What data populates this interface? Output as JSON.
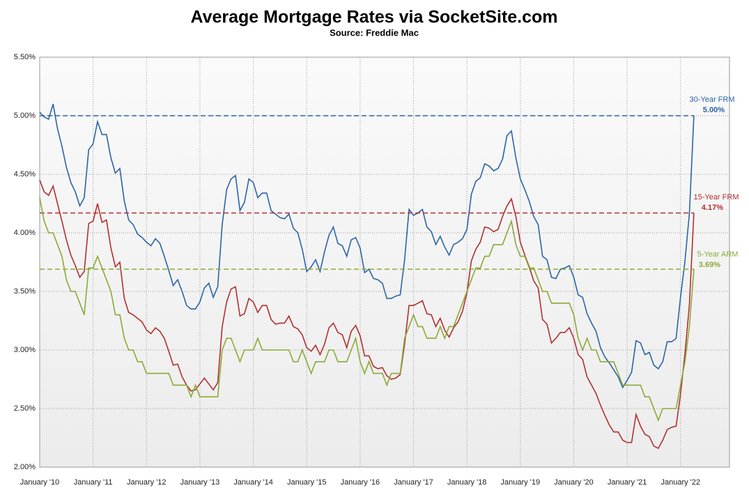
{
  "chart_data": {
    "type": "line",
    "title": "Average Mortgage Rates via SocketSite.com",
    "subtitle": "Source: Freddie Mac",
    "x": [
      "2010-01",
      "2010-02",
      "2010-03",
      "2010-04",
      "2010-05",
      "2010-06",
      "2010-07",
      "2010-08",
      "2010-09",
      "2010-10",
      "2010-11",
      "2010-12",
      "2011-01",
      "2011-02",
      "2011-03",
      "2011-04",
      "2011-05",
      "2011-06",
      "2011-07",
      "2011-08",
      "2011-09",
      "2011-10",
      "2011-11",
      "2011-12",
      "2012-01",
      "2012-02",
      "2012-03",
      "2012-04",
      "2012-05",
      "2012-06",
      "2012-07",
      "2012-08",
      "2012-09",
      "2012-10",
      "2012-11",
      "2012-12",
      "2013-01",
      "2013-02",
      "2013-03",
      "2013-04",
      "2013-05",
      "2013-06",
      "2013-07",
      "2013-08",
      "2013-09",
      "2013-10",
      "2013-11",
      "2013-12",
      "2014-01",
      "2014-02",
      "2014-03",
      "2014-04",
      "2014-05",
      "2014-06",
      "2014-07",
      "2014-08",
      "2014-09",
      "2014-10",
      "2014-11",
      "2014-12",
      "2015-01",
      "2015-02",
      "2015-03",
      "2015-04",
      "2015-05",
      "2015-06",
      "2015-07",
      "2015-08",
      "2015-09",
      "2015-10",
      "2015-11",
      "2015-12",
      "2016-01",
      "2016-02",
      "2016-03",
      "2016-04",
      "2016-05",
      "2016-06",
      "2016-07",
      "2016-08",
      "2016-09",
      "2016-10",
      "2016-11",
      "2016-12",
      "2017-01",
      "2017-02",
      "2017-03",
      "2017-04",
      "2017-05",
      "2017-06",
      "2017-07",
      "2017-08",
      "2017-09",
      "2017-10",
      "2017-11",
      "2017-12",
      "2018-01",
      "2018-02",
      "2018-03",
      "2018-04",
      "2018-05",
      "2018-06",
      "2018-07",
      "2018-08",
      "2018-09",
      "2018-10",
      "2018-11",
      "2018-12",
      "2019-01",
      "2019-02",
      "2019-03",
      "2019-04",
      "2019-05",
      "2019-06",
      "2019-07",
      "2019-08",
      "2019-09",
      "2019-10",
      "2019-11",
      "2019-12",
      "2020-01",
      "2020-02",
      "2020-03",
      "2020-04",
      "2020-05",
      "2020-06",
      "2020-07",
      "2020-08",
      "2020-09",
      "2020-10",
      "2020-11",
      "2020-12",
      "2021-01",
      "2021-02",
      "2021-03",
      "2021-04",
      "2021-05",
      "2021-06",
      "2021-07",
      "2021-08",
      "2021-09",
      "2021-10",
      "2021-11",
      "2021-12",
      "2022-01",
      "2022-02",
      "2022-03",
      "2022-04"
    ],
    "series": [
      {
        "name": "30-Year FRM",
        "color": "#2b63a8",
        "reference": {
          "value": 5.0,
          "label": "5.00%"
        },
        "values": [
          5.03,
          4.99,
          4.97,
          5.1,
          4.89,
          4.74,
          4.56,
          4.43,
          4.35,
          4.23,
          4.3,
          4.71,
          4.76,
          4.95,
          4.84,
          4.84,
          4.64,
          4.51,
          4.55,
          4.27,
          4.11,
          4.07,
          3.99,
          3.96,
          3.92,
          3.89,
          3.95,
          3.91,
          3.8,
          3.68,
          3.55,
          3.6,
          3.5,
          3.38,
          3.35,
          3.35,
          3.41,
          3.53,
          3.57,
          3.45,
          3.54,
          4.07,
          4.37,
          4.46,
          4.49,
          4.19,
          4.26,
          4.46,
          4.43,
          4.3,
          4.34,
          4.34,
          4.19,
          4.16,
          4.13,
          4.12,
          4.16,
          4.04,
          4.0,
          3.86,
          3.67,
          3.71,
          3.77,
          3.67,
          3.84,
          3.98,
          4.05,
          3.91,
          3.89,
          3.8,
          3.94,
          3.96,
          3.87,
          3.66,
          3.69,
          3.61,
          3.6,
          3.57,
          3.44,
          3.44,
          3.46,
          3.47,
          3.77,
          4.2,
          4.15,
          4.17,
          4.2,
          4.05,
          4.01,
          3.9,
          3.97,
          3.88,
          3.81,
          3.9,
          3.92,
          3.95,
          4.03,
          4.33,
          4.44,
          4.47,
          4.59,
          4.57,
          4.53,
          4.55,
          4.63,
          4.83,
          4.87,
          4.64,
          4.46,
          4.37,
          4.27,
          4.14,
          4.07,
          3.8,
          3.77,
          3.62,
          3.61,
          3.69,
          3.7,
          3.72,
          3.62,
          3.47,
          3.45,
          3.31,
          3.23,
          3.16,
          3.02,
          2.94,
          2.89,
          2.83,
          2.77,
          2.68,
          2.74,
          2.81,
          3.08,
          3.06,
          2.96,
          2.98,
          2.87,
          2.84,
          2.9,
          3.07,
          3.07,
          3.1,
          3.45,
          3.76,
          4.17,
          5.0
        ]
      },
      {
        "name": "15-Year FRM",
        "color": "#b22e2e",
        "reference": {
          "value": 4.17,
          "label": "4.17%"
        },
        "values": [
          4.45,
          4.35,
          4.32,
          4.4,
          4.25,
          4.1,
          3.94,
          3.81,
          3.72,
          3.62,
          3.67,
          4.08,
          4.1,
          4.25,
          4.09,
          4.11,
          3.87,
          3.71,
          3.75,
          3.44,
          3.32,
          3.3,
          3.27,
          3.24,
          3.17,
          3.14,
          3.19,
          3.16,
          3.1,
          2.99,
          2.87,
          2.88,
          2.77,
          2.7,
          2.65,
          2.66,
          2.71,
          2.76,
          2.71,
          2.66,
          2.72,
          3.2,
          3.41,
          3.52,
          3.54,
          3.29,
          3.31,
          3.44,
          3.41,
          3.32,
          3.38,
          3.38,
          3.26,
          3.22,
          3.23,
          3.23,
          3.29,
          3.2,
          3.18,
          3.13,
          3.02,
          2.99,
          3.04,
          2.96,
          3.05,
          3.19,
          3.23,
          3.15,
          3.13,
          3.02,
          3.16,
          3.21,
          3.12,
          2.95,
          2.95,
          2.86,
          2.84,
          2.85,
          2.78,
          2.75,
          2.76,
          2.79,
          3.05,
          3.38,
          3.38,
          3.4,
          3.42,
          3.31,
          3.3,
          3.2,
          3.27,
          3.17,
          3.11,
          3.19,
          3.24,
          3.33,
          3.49,
          3.76,
          3.86,
          3.92,
          4.05,
          4.04,
          4.01,
          4.03,
          4.14,
          4.23,
          4.29,
          4.14,
          3.92,
          3.81,
          3.71,
          3.59,
          3.53,
          3.26,
          3.22,
          3.06,
          3.1,
          3.15,
          3.15,
          3.19,
          3.1,
          2.96,
          2.92,
          2.77,
          2.7,
          2.63,
          2.53,
          2.44,
          2.36,
          2.3,
          2.3,
          2.23,
          2.21,
          2.21,
          2.45,
          2.35,
          2.28,
          2.26,
          2.18,
          2.16,
          2.23,
          2.32,
          2.34,
          2.35,
          2.62,
          2.97,
          3.39,
          4.17
        ]
      },
      {
        "name": "5-Year ARM",
        "color": "#8aaa34",
        "reference": {
          "value": 3.69,
          "label": "3.69%"
        },
        "values": [
          4.3,
          4.1,
          4.0,
          4.0,
          3.9,
          3.8,
          3.6,
          3.5,
          3.5,
          3.4,
          3.3,
          3.7,
          3.7,
          3.8,
          3.7,
          3.6,
          3.5,
          3.3,
          3.3,
          3.1,
          3.0,
          3.0,
          2.9,
          2.9,
          2.8,
          2.8,
          2.8,
          2.8,
          2.8,
          2.8,
          2.7,
          2.7,
          2.7,
          2.7,
          2.6,
          2.7,
          2.6,
          2.6,
          2.6,
          2.6,
          2.6,
          3.0,
          3.1,
          3.1,
          3.0,
          2.9,
          3.0,
          3.0,
          3.0,
          3.1,
          3.0,
          3.0,
          3.0,
          3.0,
          3.0,
          3.0,
          3.0,
          2.9,
          2.9,
          3.0,
          2.9,
          2.8,
          2.9,
          2.9,
          2.9,
          3.0,
          3.0,
          2.9,
          2.9,
          2.9,
          3.0,
          3.1,
          2.9,
          2.8,
          2.9,
          2.8,
          2.8,
          2.8,
          2.7,
          2.8,
          2.8,
          2.8,
          3.1,
          3.2,
          3.3,
          3.2,
          3.2,
          3.1,
          3.1,
          3.1,
          3.2,
          3.1,
          3.2,
          3.2,
          3.3,
          3.4,
          3.5,
          3.6,
          3.7,
          3.7,
          3.8,
          3.8,
          3.9,
          3.9,
          3.9,
          4.0,
          4.1,
          3.9,
          3.8,
          3.8,
          3.7,
          3.7,
          3.6,
          3.5,
          3.5,
          3.4,
          3.4,
          3.4,
          3.4,
          3.4,
          3.3,
          3.1,
          3.0,
          3.1,
          3.0,
          3.0,
          2.9,
          2.9,
          2.9,
          2.9,
          2.8,
          2.7,
          2.7,
          2.7,
          2.7,
          2.7,
          2.6,
          2.6,
          2.5,
          2.4,
          2.5,
          2.5,
          2.5,
          2.5,
          2.7,
          2.9,
          3.2,
          3.69
        ]
      }
    ],
    "xlim": [
      "2010-01",
      "2022-12"
    ],
    "xticks": [
      {
        "value": "2010-01",
        "label": "January '10"
      },
      {
        "value": "2011-01",
        "label": "January '11"
      },
      {
        "value": "2012-01",
        "label": "January '12"
      },
      {
        "value": "2013-01",
        "label": "January '13"
      },
      {
        "value": "2014-01",
        "label": "January '14"
      },
      {
        "value": "2015-01",
        "label": "January '15"
      },
      {
        "value": "2016-01",
        "label": "January '16"
      },
      {
        "value": "2017-01",
        "label": "January '17"
      },
      {
        "value": "2018-01",
        "label": "January '18"
      },
      {
        "value": "2019-01",
        "label": "January '19"
      },
      {
        "value": "2020-01",
        "label": "January '20"
      },
      {
        "value": "2021-01",
        "label": "January '21"
      },
      {
        "value": "2022-01",
        "label": "January '22"
      }
    ],
    "ylim": [
      2.0,
      5.5
    ],
    "yticks": [
      {
        "value": 2.0,
        "label": "2.00%"
      },
      {
        "value": 2.5,
        "label": "2.50%"
      },
      {
        "value": 3.0,
        "label": "3.00%"
      },
      {
        "value": 3.5,
        "label": "3.50%"
      },
      {
        "value": 4.0,
        "label": "4.00%"
      },
      {
        "value": 4.5,
        "label": "4.50%"
      },
      {
        "value": 5.0,
        "label": "5.00%"
      },
      {
        "value": 5.5,
        "label": "5.50%"
      }
    ],
    "grid": true
  }
}
